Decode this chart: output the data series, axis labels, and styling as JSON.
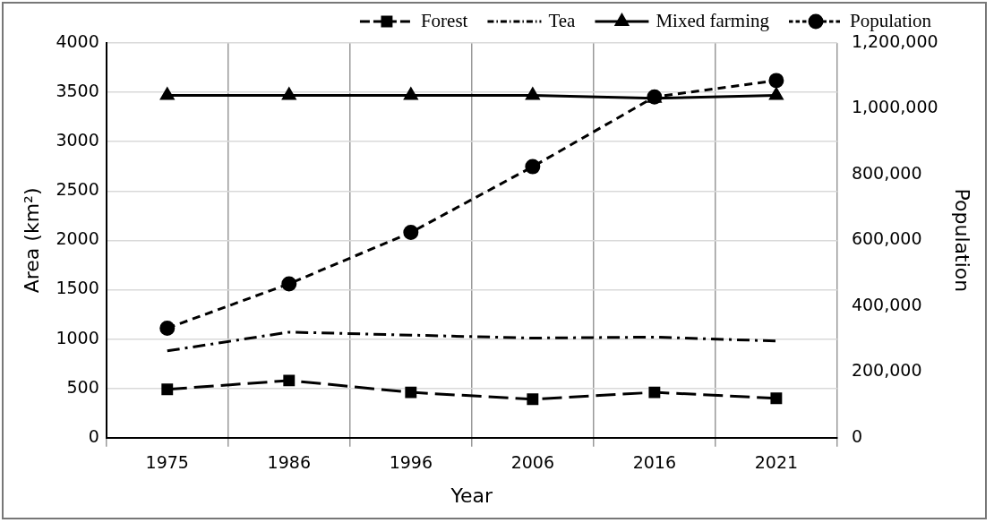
{
  "chart_data": {
    "type": "line",
    "xlabel": "Year",
    "ylabel": "Area (km²)",
    "y2label": "Population",
    "categories": [
      "1975",
      "1986",
      "1996",
      "2006",
      "2016",
      "2021"
    ],
    "series": [
      {
        "name": "Forest",
        "color": "#000000",
        "marker": "square",
        "line_style": "dashed",
        "values": [
          490,
          580,
          460,
          390,
          460,
          400
        ]
      },
      {
        "name": "Tea",
        "color": "#000000",
        "marker": "none",
        "line_style": "dashdot",
        "values": [
          880,
          1070,
          1040,
          1010,
          1020,
          980
        ]
      },
      {
        "name": "Mixed farming",
        "color": "#000000",
        "marker": "triangle",
        "line_style": "solid",
        "values": [
          3470,
          3470,
          3470,
          3470,
          3440,
          3470
        ]
      },
      {
        "name": "Population",
        "color": "#000000",
        "marker": "circle",
        "line_style": "dotted",
        "axis": "y2",
        "values": [
          333000,
          468000,
          624000,
          824000,
          1036000,
          1086000
        ]
      }
    ],
    "ylim": [
      0,
      4000
    ],
    "yticks": [
      0,
      500,
      1000,
      1500,
      2000,
      2500,
      3000,
      3500,
      4000
    ],
    "y2lim": [
      0,
      1200000
    ],
    "y2ticks": [
      {
        "value": 0,
        "label": "0"
      },
      {
        "value": 200000,
        "label": "200,000"
      },
      {
        "value": 400000,
        "label": "400,000"
      },
      {
        "value": 600000,
        "label": "600,000"
      },
      {
        "value": 800000,
        "label": "800,000"
      },
      {
        "value": 1000000,
        "label": "1,000,000"
      },
      {
        "value": 1200000,
        "label": "1,200,000"
      }
    ],
    "grid": true,
    "legend": "top"
  }
}
